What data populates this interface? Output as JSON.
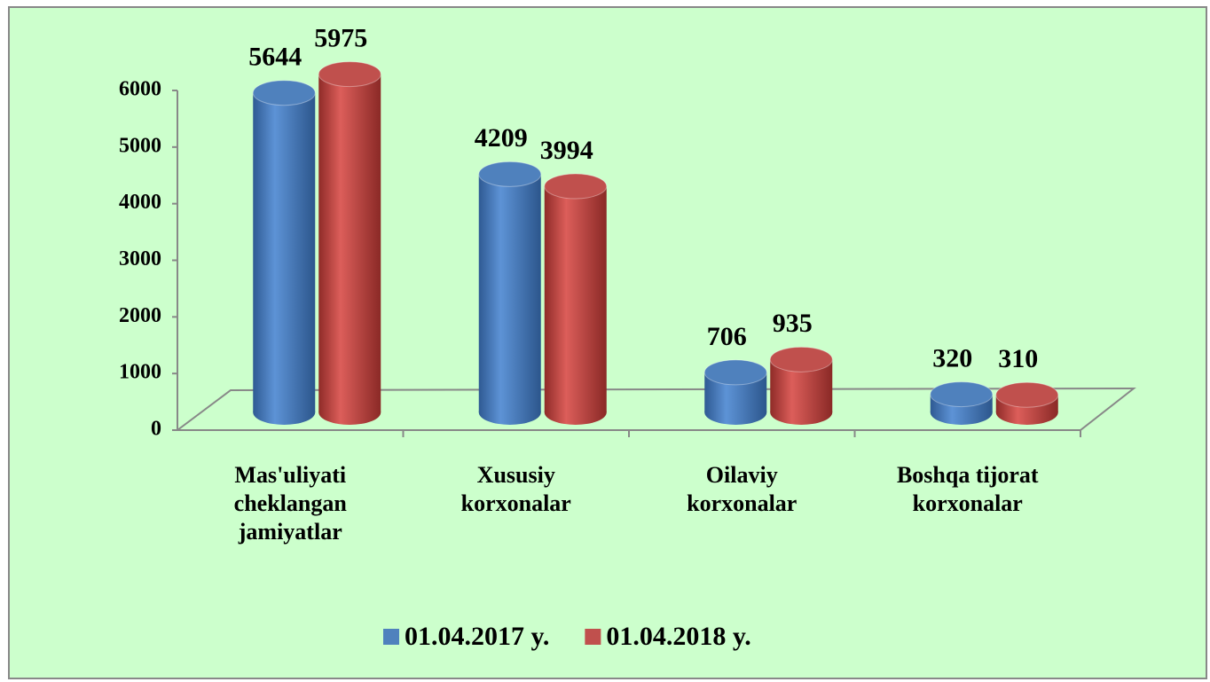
{
  "chart_data": {
    "type": "bar3d",
    "categories": [
      "Mas'uliyati\ncheklangan\njamiyatlar",
      "Xususiy\nkorxonalar",
      "Oilaviy\nkorxonalar",
      "Boshqa tijorat\nkorxonalar"
    ],
    "series": [
      {
        "name": "01.04.2017 y.",
        "color": "#4f81bd",
        "values": [
          5644,
          4209,
          706,
          320
        ]
      },
      {
        "name": "01.04.2018 y.",
        "color": "#c0504d",
        "values": [
          5975,
          3994,
          935,
          310
        ]
      }
    ],
    "ylim": [
      0,
      6000
    ],
    "yticks": [
      0,
      1000,
      2000,
      3000,
      4000,
      5000,
      6000
    ],
    "legend": "bottom"
  }
}
